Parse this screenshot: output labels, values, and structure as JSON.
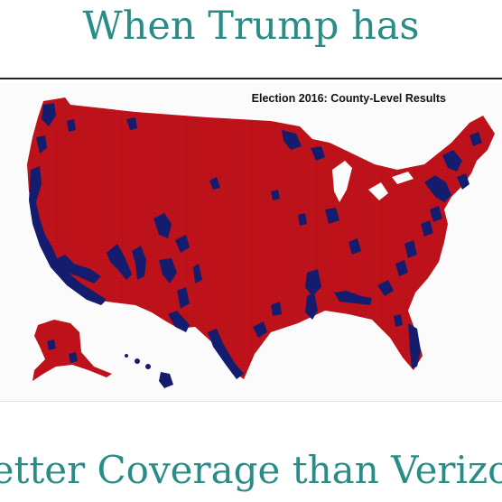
{
  "meme": {
    "top_caption": "When Trump has",
    "bottom_caption": "etter Coverage than Verizo"
  },
  "map": {
    "title": "Election 2016: County-Level Results",
    "colors": {
      "republican": "#c0121b",
      "democrat": "#141c6e",
      "county_lines": "#8e0a10"
    }
  }
}
